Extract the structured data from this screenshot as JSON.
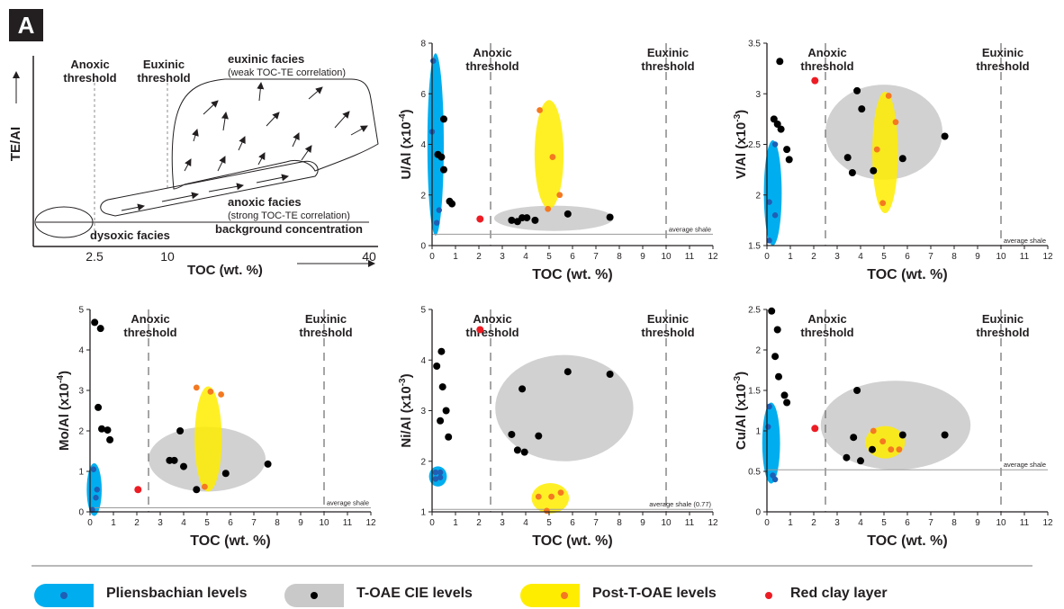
{
  "panel_label": "A",
  "colors": {
    "pliensbachian": "#00aeef",
    "toae": "#c9c9c9",
    "post_toae": "#ffed00",
    "black_point": "#000000",
    "blue_point": "#1f5fb5",
    "orange_point": "#f47920",
    "red_point": "#ed1c24"
  },
  "schematic": {
    "yaxis_label": "TE/AI",
    "xaxis_label": "TOC (wt. %)",
    "ticks": [
      "2.5",
      "10",
      "40"
    ],
    "anoxic_threshold": [
      "Anoxic",
      "threshold"
    ],
    "euxinic_threshold": [
      "Euxinic",
      "threshold"
    ],
    "euxinic_facies": "euxinic facies",
    "euxinic_note": "(weak TOC-TE correlation)",
    "anoxic_facies": "anoxic facies",
    "anoxic_note": "(strong TOC-TE correlation)",
    "dysoxic_facies": "dysoxic facies",
    "background": "background concentration"
  },
  "chart_data": [
    {
      "id": "u",
      "type": "scatter",
      "ylabel": "U/Al (x10",
      "ylabel_exp": "-4",
      "xlabel": "TOC (wt. %)",
      "xlim": [
        0,
        12
      ],
      "ylim": [
        0,
        8
      ],
      "xticks": [
        0,
        1,
        2,
        3,
        4,
        5,
        6,
        7,
        8,
        9,
        10,
        11,
        12
      ],
      "yticks": [
        0,
        2,
        4,
        6,
        8
      ],
      "thresholds": [
        {
          "x": 2.5,
          "label": [
            "Anoxic",
            "threshold"
          ]
        },
        {
          "x": 10,
          "label": [
            "Euxinic",
            "threshold"
          ]
        }
      ],
      "average_shale": {
        "y": 0.45,
        "label": "average shale"
      },
      "regions": [
        {
          "group": "pliensbachian",
          "cx": 0.15,
          "cy": 4.0,
          "rx": 0.35,
          "ry": 3.6
        },
        {
          "group": "toae",
          "cx": 5.2,
          "cy": 1.08,
          "rx": 2.55,
          "ry": 0.5
        },
        {
          "group": "post_toae",
          "cx": 5.0,
          "cy": 3.6,
          "rx": 0.62,
          "ry": 2.15
        }
      ],
      "series": [
        {
          "name": "Pliensbachian levels",
          "group": "pliensbachian",
          "points": [
            [
              0.05,
              7.3
            ],
            [
              0.0,
              4.5
            ],
            [
              0.3,
              1.4
            ],
            [
              0.2,
              0.9
            ]
          ]
        },
        {
          "name": "T-OAE CIE levels",
          "group": "toae",
          "points": [
            [
              0.5,
              5.0
            ],
            [
              0.25,
              3.6
            ],
            [
              0.4,
              3.5
            ],
            [
              0.5,
              3.0
            ],
            [
              0.75,
              1.75
            ],
            [
              0.85,
              1.65
            ],
            [
              3.4,
              1.0
            ],
            [
              3.65,
              0.95
            ],
            [
              3.85,
              1.1
            ],
            [
              4.05,
              1.1
            ],
            [
              4.4,
              1.0
            ],
            [
              5.8,
              1.25
            ],
            [
              7.6,
              1.12
            ]
          ]
        },
        {
          "name": "Post-T-OAE levels",
          "group": "post_toae",
          "points": [
            [
              4.6,
              5.35
            ],
            [
              5.15,
              3.5
            ],
            [
              5.45,
              2.0
            ],
            [
              4.95,
              1.45
            ]
          ]
        },
        {
          "name": "Red clay layer",
          "group": "red_clay",
          "points": [
            [
              2.05,
              1.05
            ]
          ]
        }
      ]
    },
    {
      "id": "v",
      "type": "scatter",
      "ylabel": "V/Al (x10",
      "ylabel_exp": "-3",
      "xlabel": "TOC (wt. %)",
      "xlim": [
        0,
        12
      ],
      "ylim": [
        1.5,
        3.5
      ],
      "xticks": [
        0,
        1,
        2,
        3,
        4,
        5,
        6,
        7,
        8,
        9,
        10,
        11,
        12
      ],
      "yticks": [
        1.5,
        2,
        2.5,
        3,
        3.5
      ],
      "thresholds": [
        {
          "x": 2.5,
          "label": [
            "Anoxic",
            "threshold"
          ]
        },
        {
          "x": 10,
          "label": [
            "Euxinic",
            "threshold"
          ]
        }
      ],
      "average_shale": {
        "y": 1.5,
        "label": "average shale"
      },
      "regions": [
        {
          "group": "pliensbachian",
          "cx": 0.25,
          "cy": 2.02,
          "rx": 0.38,
          "ry": 0.52
        },
        {
          "group": "toae",
          "cx": 5.0,
          "cy": 2.62,
          "rx": 2.5,
          "ry": 0.47
        },
        {
          "group": "post_toae",
          "cx": 5.05,
          "cy": 2.42,
          "rx": 0.55,
          "ry": 0.6
        }
      ],
      "series": [
        {
          "name": "Pliensbachian levels",
          "group": "pliensbachian",
          "points": [
            [
              0.35,
              2.5
            ],
            [
              0.1,
              1.93
            ],
            [
              0.35,
              1.8
            ],
            [
              0.1,
              1.55
            ]
          ]
        },
        {
          "name": "T-OAE CIE levels",
          "group": "toae",
          "points": [
            [
              0.55,
              3.32
            ],
            [
              0.3,
              2.75
            ],
            [
              0.45,
              2.7
            ],
            [
              0.6,
              2.65
            ],
            [
              0.85,
              2.45
            ],
            [
              0.95,
              2.35
            ],
            [
              3.85,
              3.03
            ],
            [
              4.05,
              2.85
            ],
            [
              3.45,
              2.37
            ],
            [
              3.65,
              2.22
            ],
            [
              4.55,
              2.24
            ],
            [
              5.8,
              2.36
            ],
            [
              7.6,
              2.58
            ]
          ]
        },
        {
          "name": "Post-T-OAE levels",
          "group": "post_toae",
          "points": [
            [
              5.2,
              2.98
            ],
            [
              5.5,
              2.72
            ],
            [
              4.7,
              2.45
            ],
            [
              4.95,
              1.92
            ]
          ]
        },
        {
          "name": "Red clay layer",
          "group": "red_clay",
          "points": [
            [
              2.05,
              3.13
            ]
          ]
        }
      ]
    },
    {
      "id": "mo",
      "type": "scatter",
      "ylabel": "Mo/Al (x10",
      "ylabel_exp": "-4",
      "xlabel": "TOC (wt. %)",
      "xlim": [
        0,
        12
      ],
      "ylim": [
        0,
        5
      ],
      "xticks": [
        0,
        1,
        2,
        3,
        4,
        5,
        6,
        7,
        8,
        9,
        10,
        11,
        12
      ],
      "yticks": [
        0,
        1,
        2,
        3,
        4,
        5
      ],
      "thresholds": [
        {
          "x": 2.5,
          "label": [
            "Anoxic",
            "threshold"
          ]
        },
        {
          "x": 10,
          "label": [
            "Euxinic",
            "threshold"
          ]
        }
      ],
      "average_shale": {
        "y": 0.1,
        "label": "average shale"
      },
      "regions": [
        {
          "group": "pliensbachian",
          "cx": 0.18,
          "cy": 0.55,
          "rx": 0.32,
          "ry": 0.65
        },
        {
          "group": "toae",
          "cx": 5.0,
          "cy": 1.3,
          "rx": 2.5,
          "ry": 0.8
        },
        {
          "group": "post_toae",
          "cx": 5.05,
          "cy": 1.8,
          "rx": 0.58,
          "ry": 1.3
        }
      ],
      "series": [
        {
          "name": "Pliensbachian levels",
          "group": "pliensbachian",
          "points": [
            [
              0.15,
              1.05
            ],
            [
              0.3,
              0.55
            ],
            [
              0.25,
              0.35
            ],
            [
              0.1,
              0.05
            ]
          ]
        },
        {
          "name": "T-OAE CIE levels",
          "group": "toae",
          "points": [
            [
              0.2,
              4.68
            ],
            [
              0.45,
              4.53
            ],
            [
              0.35,
              2.58
            ],
            [
              0.5,
              2.05
            ],
            [
              0.75,
              2.02
            ],
            [
              0.85,
              1.78
            ],
            [
              3.85,
              2.0
            ],
            [
              3.4,
              1.27
            ],
            [
              3.6,
              1.27
            ],
            [
              4.0,
              1.12
            ],
            [
              4.55,
              0.55
            ],
            [
              5.8,
              0.95
            ],
            [
              7.6,
              1.18
            ]
          ]
        },
        {
          "name": "Post-T-OAE levels",
          "group": "post_toae",
          "points": [
            [
              4.55,
              3.07
            ],
            [
              5.15,
              2.97
            ],
            [
              5.6,
              2.9
            ],
            [
              4.9,
              0.62
            ]
          ]
        },
        {
          "name": "Red clay layer",
          "group": "red_clay",
          "points": [
            [
              2.05,
              0.55
            ]
          ]
        }
      ]
    },
    {
      "id": "ni",
      "type": "scatter",
      "ylabel": "Ni/Al (x10",
      "ylabel_exp": "-3",
      "xlabel": "TOC (wt. %)",
      "xlim": [
        0,
        12
      ],
      "ylim": [
        1,
        5
      ],
      "xticks": [
        0,
        1,
        2,
        3,
        4,
        5,
        6,
        7,
        8,
        9,
        10,
        11,
        12
      ],
      "yticks": [
        1,
        2,
        3,
        4,
        5
      ],
      "thresholds": [
        {
          "x": 2.5,
          "label": [
            "Anoxic",
            "threshold"
          ]
        },
        {
          "x": 10,
          "label": [
            "Euxinic",
            "threshold"
          ]
        }
      ],
      "average_shale": {
        "y": 1.05,
        "label": "average shale (0.77)"
      },
      "regions": [
        {
          "group": "pliensbachian",
          "cx": 0.25,
          "cy": 1.7,
          "rx": 0.38,
          "ry": 0.2
        },
        {
          "group": "toae",
          "cx": 5.65,
          "cy": 3.05,
          "rx": 2.95,
          "ry": 1.05
        },
        {
          "group": "post_toae",
          "cx": 5.05,
          "cy": 1.27,
          "rx": 0.8,
          "ry": 0.3
        }
      ],
      "series": [
        {
          "name": "Pliensbachian levels",
          "group": "pliensbachian",
          "points": [
            [
              0.15,
              1.78
            ],
            [
              0.35,
              1.78
            ],
            [
              0.15,
              1.65
            ],
            [
              0.35,
              1.68
            ]
          ]
        },
        {
          "name": "T-OAE CIE levels",
          "group": "toae",
          "points": [
            [
              0.4,
              4.17
            ],
            [
              0.2,
              3.88
            ],
            [
              0.45,
              3.47
            ],
            [
              0.6,
              3.0
            ],
            [
              0.35,
              2.8
            ],
            [
              0.7,
              2.48
            ],
            [
              3.85,
              3.43
            ],
            [
              3.4,
              2.53
            ],
            [
              3.65,
              2.22
            ],
            [
              3.95,
              2.18
            ],
            [
              4.55,
              2.5
            ],
            [
              5.8,
              3.77
            ],
            [
              7.6,
              3.72
            ]
          ]
        },
        {
          "name": "Post-T-OAE levels",
          "group": "post_toae",
          "points": [
            [
              4.55,
              1.3
            ],
            [
              5.1,
              1.3
            ],
            [
              5.5,
              1.38
            ],
            [
              4.9,
              1.02
            ]
          ]
        },
        {
          "name": "Red clay layer",
          "group": "red_clay",
          "points": [
            [
              2.05,
              4.6
            ]
          ]
        }
      ]
    },
    {
      "id": "cu",
      "type": "scatter",
      "ylabel": "Cu/Al (x10",
      "ylabel_exp": "-3",
      "xlabel": "TOC (wt. %)",
      "xlim": [
        0,
        12
      ],
      "ylim": [
        0,
        2.5
      ],
      "xticks": [
        0,
        1,
        2,
        3,
        4,
        5,
        6,
        7,
        8,
        9,
        10,
        11,
        12
      ],
      "yticks": [
        0,
        0.5,
        1,
        1.5,
        2,
        2.5
      ],
      "thresholds": [
        {
          "x": 2.5,
          "label": [
            "Anoxic",
            "threshold"
          ]
        },
        {
          "x": 10,
          "label": [
            "Euxinic",
            "threshold"
          ]
        }
      ],
      "average_shale": {
        "y": 0.52,
        "label": "average shale"
      },
      "regions": [
        {
          "group": "pliensbachian",
          "cx": 0.18,
          "cy": 0.85,
          "rx": 0.38,
          "ry": 0.5
        },
        {
          "group": "toae",
          "cx": 5.5,
          "cy": 1.07,
          "rx": 3.2,
          "ry": 0.55
        },
        {
          "group": "post_toae",
          "cx": 5.05,
          "cy": 0.86,
          "rx": 0.85,
          "ry": 0.2
        }
      ],
      "series": [
        {
          "name": "Pliensbachian levels",
          "group": "pliensbachian",
          "points": [
            [
              0.1,
              1.3
            ],
            [
              0.05,
              1.05
            ],
            [
              0.25,
              0.45
            ],
            [
              0.35,
              0.4
            ]
          ]
        },
        {
          "name": "T-OAE CIE levels",
          "group": "toae",
          "points": [
            [
              0.2,
              2.48
            ],
            [
              0.45,
              2.25
            ],
            [
              0.35,
              1.92
            ],
            [
              0.5,
              1.67
            ],
            [
              0.75,
              1.44
            ],
            [
              0.85,
              1.35
            ],
            [
              3.85,
              1.5
            ],
            [
              3.4,
              0.67
            ],
            [
              3.7,
              0.92
            ],
            [
              4.0,
              0.63
            ],
            [
              4.5,
              0.77
            ],
            [
              5.8,
              0.95
            ],
            [
              7.6,
              0.95
            ]
          ]
        },
        {
          "name": "Post-T-OAE levels",
          "group": "post_toae",
          "points": [
            [
              4.55,
              1.0
            ],
            [
              4.95,
              0.87
            ],
            [
              5.3,
              0.77
            ],
            [
              5.65,
              0.77
            ]
          ]
        },
        {
          "name": "Red clay layer",
          "group": "red_clay",
          "points": [
            [
              2.05,
              1.03
            ]
          ]
        }
      ]
    }
  ],
  "legend": [
    {
      "group": "pliensbachian",
      "label": "Pliensbachian levels"
    },
    {
      "group": "toae",
      "label": "T-OAE CIE levels"
    },
    {
      "group": "post_toae",
      "label": "Post-T-OAE levels"
    },
    {
      "group": "red_clay",
      "label": "Red clay layer"
    }
  ]
}
